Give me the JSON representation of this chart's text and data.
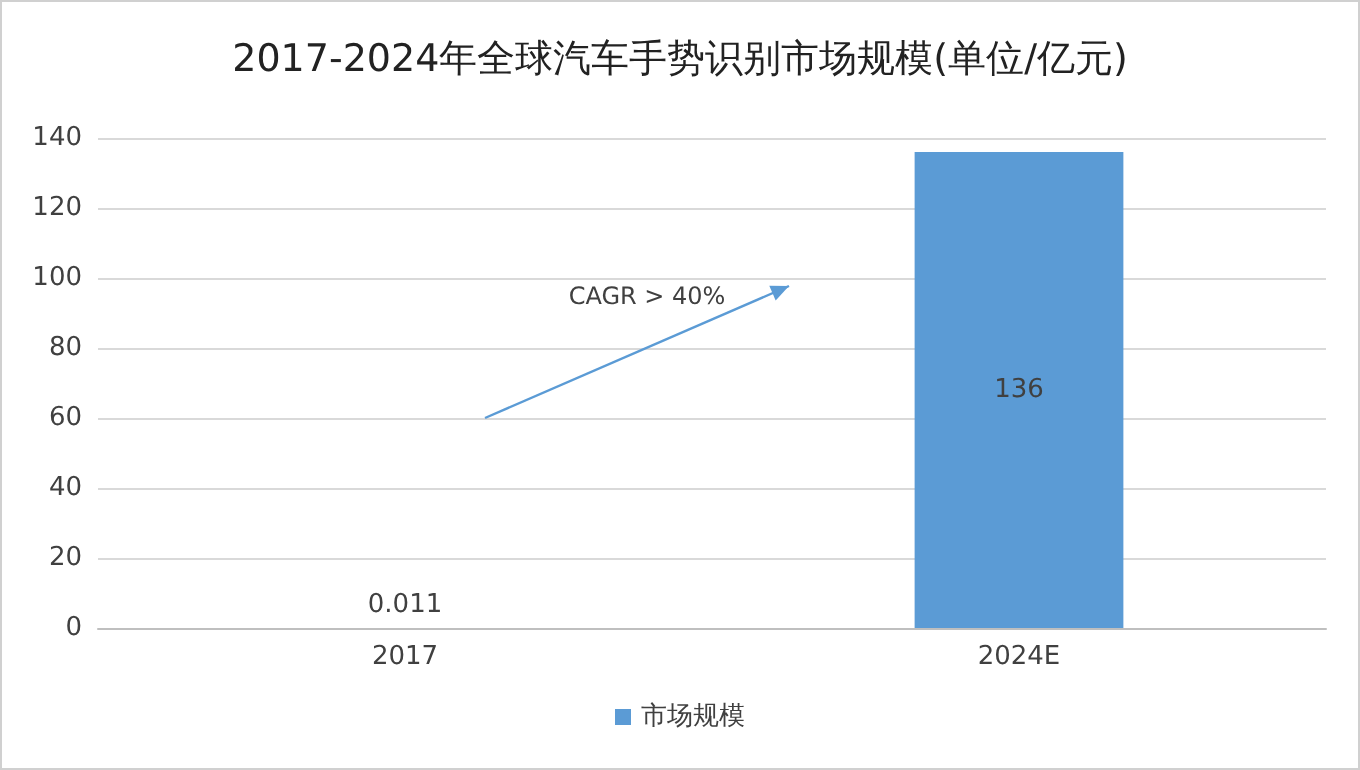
{
  "chart_data": {
    "type": "bar",
    "title": "2017-2024年全球汽车手势识别市场规模(单位/亿元)",
    "categories": [
      "2017",
      "2024E"
    ],
    "series": [
      {
        "name": "市场规模",
        "color": "#5b9bd5",
        "values": [
          0.011,
          136
        ]
      }
    ],
    "ylim": [
      0,
      140
    ],
    "yticks": [
      0,
      20,
      40,
      60,
      80,
      100,
      120,
      140
    ],
    "grid": "y",
    "legend": "bottom",
    "data_labels": true,
    "annotations": [
      "CAGR > 40%"
    ]
  }
}
